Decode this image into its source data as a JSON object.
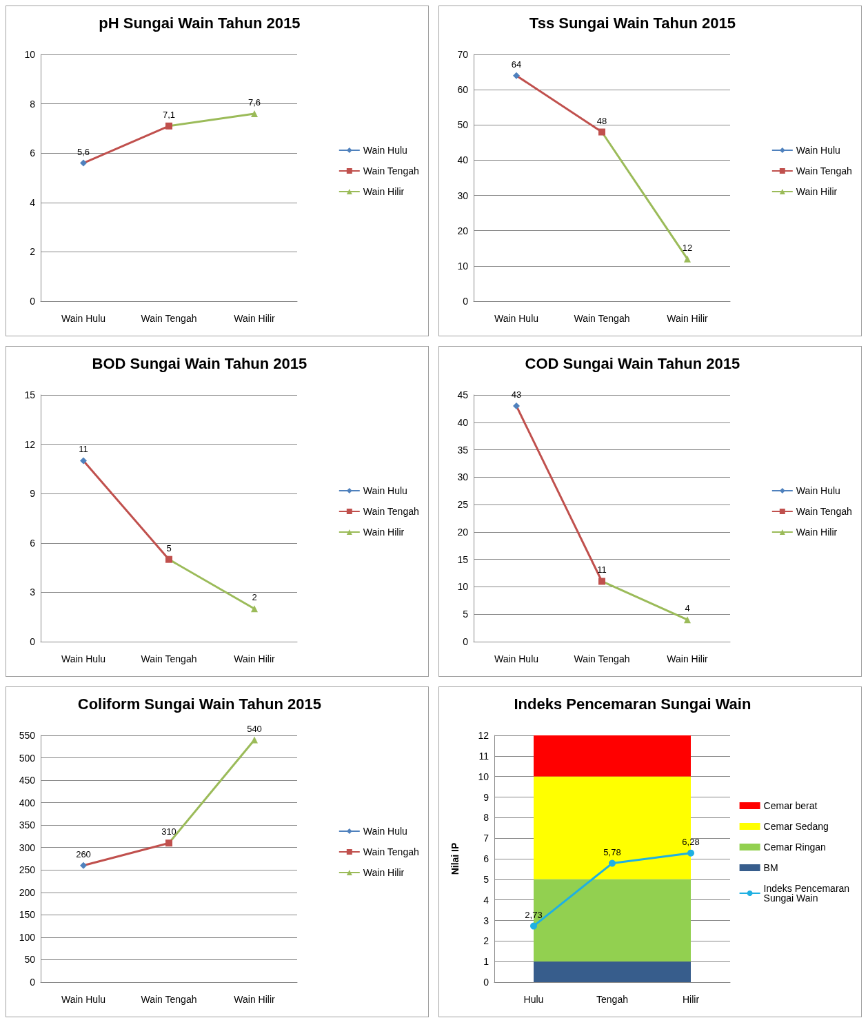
{
  "chart_data": [
    {
      "type": "line",
      "title": "pH Sungai Wain Tahun 2015",
      "categories": [
        "Wain Hulu",
        "Wain Tengah",
        "Wain Hilir"
      ],
      "ylim": [
        0,
        10
      ],
      "yticks": [
        0,
        2,
        4,
        6,
        8,
        10
      ],
      "grid": "y",
      "legend": "right",
      "series": [
        {
          "name": "Wain Hulu",
          "color": "#4f81bd",
          "marker": "diamond",
          "values": [
            5.6,
            null,
            null
          ],
          "value_labels": [
            "5,6",
            null,
            null
          ]
        },
        {
          "name": "Wain Tengah",
          "color": "#c0504d",
          "marker": "square",
          "values": [
            5.6,
            7.1,
            null
          ],
          "value_labels": [
            null,
            "7,1",
            null
          ]
        },
        {
          "name": "Wain Hilir",
          "color": "#9bbb59",
          "marker": "triangle",
          "values": [
            null,
            7.1,
            7.6
          ],
          "value_labels": [
            null,
            null,
            "7,6"
          ]
        }
      ]
    },
    {
      "type": "line",
      "title": "Tss Sungai Wain Tahun 2015",
      "categories": [
        "Wain Hulu",
        "Wain Tengah",
        "Wain Hilir"
      ],
      "ylim": [
        0,
        70
      ],
      "yticks": [
        0,
        10,
        20,
        30,
        40,
        50,
        60,
        70
      ],
      "grid": "y",
      "legend": "right",
      "series": [
        {
          "name": "Wain Hulu",
          "color": "#4f81bd",
          "marker": "diamond",
          "values": [
            64,
            null,
            null
          ],
          "value_labels": [
            "64",
            null,
            null
          ]
        },
        {
          "name": "Wain Tengah",
          "color": "#c0504d",
          "marker": "square",
          "values": [
            64,
            48,
            null
          ],
          "value_labels": [
            null,
            "48",
            null
          ]
        },
        {
          "name": "Wain Hilir",
          "color": "#9bbb59",
          "marker": "triangle",
          "values": [
            null,
            48,
            12
          ],
          "value_labels": [
            null,
            null,
            "12"
          ]
        }
      ]
    },
    {
      "type": "line",
      "title": "BOD Sungai Wain Tahun 2015",
      "categories": [
        "Wain Hulu",
        "Wain Tengah",
        "Wain Hilir"
      ],
      "ylim": [
        0,
        15
      ],
      "yticks": [
        0,
        3,
        6,
        9,
        12,
        15
      ],
      "grid": "y",
      "legend": "right",
      "series": [
        {
          "name": "Wain Hulu",
          "color": "#4f81bd",
          "marker": "diamond",
          "values": [
            11,
            null,
            null
          ],
          "value_labels": [
            "11",
            null,
            null
          ]
        },
        {
          "name": "Wain Tengah",
          "color": "#c0504d",
          "marker": "square",
          "values": [
            11,
            5,
            null
          ],
          "value_labels": [
            null,
            "5",
            null
          ]
        },
        {
          "name": "Wain Hilir",
          "color": "#9bbb59",
          "marker": "triangle",
          "values": [
            null,
            5,
            2
          ],
          "value_labels": [
            null,
            null,
            "2"
          ]
        }
      ]
    },
    {
      "type": "line",
      "title": "COD Sungai Wain Tahun 2015",
      "categories": [
        "Wain Hulu",
        "Wain Tengah",
        "Wain Hilir"
      ],
      "ylim": [
        0,
        45
      ],
      "yticks": [
        0,
        5,
        10,
        15,
        20,
        25,
        30,
        35,
        40,
        45
      ],
      "grid": "y",
      "legend": "right",
      "series": [
        {
          "name": "Wain Hulu",
          "color": "#4f81bd",
          "marker": "diamond",
          "values": [
            43,
            null,
            null
          ],
          "value_labels": [
            "43",
            null,
            null
          ]
        },
        {
          "name": "Wain Tengah",
          "color": "#c0504d",
          "marker": "square",
          "values": [
            43,
            11,
            null
          ],
          "value_labels": [
            null,
            "11",
            null
          ]
        },
        {
          "name": "Wain Hilir",
          "color": "#9bbb59",
          "marker": "triangle",
          "values": [
            null,
            11,
            4
          ],
          "value_labels": [
            null,
            null,
            "4"
          ]
        }
      ]
    },
    {
      "type": "line",
      "title": "Coliform Sungai Wain Tahun 2015",
      "categories": [
        "Wain Hulu",
        "Wain Tengah",
        "Wain Hilir"
      ],
      "ylim": [
        0,
        550
      ],
      "yticks": [
        0,
        50,
        100,
        150,
        200,
        250,
        300,
        350,
        400,
        450,
        500,
        550
      ],
      "grid": "y",
      "legend": "right",
      "series": [
        {
          "name": "Wain Hulu",
          "color": "#4f81bd",
          "marker": "diamond",
          "values": [
            260,
            null,
            null
          ],
          "value_labels": [
            "260",
            null,
            null
          ]
        },
        {
          "name": "Wain Tengah",
          "color": "#c0504d",
          "marker": "square",
          "values": [
            260,
            310,
            null
          ],
          "value_labels": [
            null,
            "310",
            null
          ]
        },
        {
          "name": "Wain Hilir",
          "color": "#9bbb59",
          "marker": "triangle",
          "values": [
            null,
            310,
            540
          ],
          "value_labels": [
            null,
            null,
            "540"
          ]
        }
      ]
    },
    {
      "type": "area",
      "stacked": true,
      "title": "Indeks Pencemaran Sungai Wain",
      "ylabel": "Nilai IP",
      "categories": [
        "Hulu",
        "Tengah",
        "Hilir"
      ],
      "ylim": [
        0,
        12
      ],
      "yticks": [
        0,
        1,
        2,
        3,
        4,
        5,
        6,
        7,
        8,
        9,
        10,
        11,
        12
      ],
      "grid": "y",
      "legend": "right",
      "series": [
        {
          "name": "BM",
          "color": "#375d8c",
          "values": [
            1,
            1,
            1
          ]
        },
        {
          "name": "Cemar Ringan",
          "color": "#92d050",
          "values": [
            4,
            4,
            4
          ]
        },
        {
          "name": "Cemar Sedang",
          "color": "#ffff00",
          "values": [
            5,
            5,
            5
          ]
        },
        {
          "name": "Cemar berat",
          "color": "#ff0000",
          "values": [
            2,
            2,
            2
          ]
        },
        {
          "name": "Indeks Pencemaran Sungai Wain",
          "type": "line",
          "color": "#1fb0e2",
          "marker": "circle",
          "values": [
            2.73,
            5.78,
            6.28
          ],
          "value_labels": [
            "2,73",
            "5,78",
            "6,28"
          ]
        }
      ]
    }
  ]
}
